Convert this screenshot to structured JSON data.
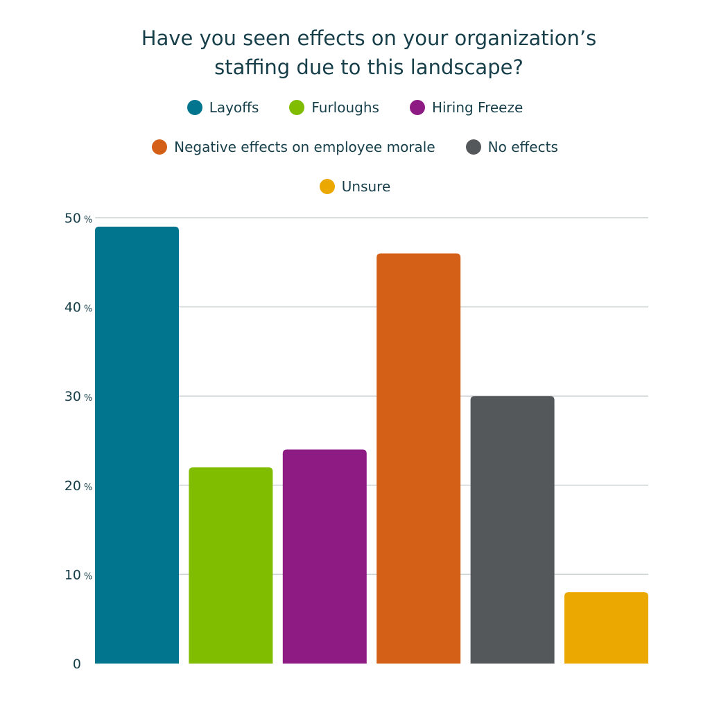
{
  "chart_data": {
    "type": "bar",
    "title": "Have you seen effects on your organization’s staffing due to this landscape?",
    "title_lines": [
      "Have you seen effects on your organization’s",
      "staffing due to this landscape?"
    ],
    "categories": [
      "Layoffs",
      "Furloughs",
      "Hiring Freeze",
      "Negative effects on employee morale",
      "No effects",
      "Unsure"
    ],
    "values": [
      49,
      22,
      24,
      46,
      30,
      8
    ],
    "colors": [
      "#00758d",
      "#80bc00",
      "#8e1b83",
      "#d45f16",
      "#54585a",
      "#eaa800"
    ],
    "ylim": [
      0,
      50
    ],
    "yticks": [
      {
        "value": 0,
        "label": "0",
        "suffix": ""
      },
      {
        "value": 10,
        "label": "10",
        "suffix": "%"
      },
      {
        "value": 20,
        "label": "20",
        "suffix": "%"
      },
      {
        "value": 30,
        "label": "30",
        "suffix": "%"
      },
      {
        "value": 40,
        "label": "40",
        "suffix": "%"
      },
      {
        "value": 50,
        "label": "50",
        "suffix": "%"
      }
    ],
    "legend_rows": [
      [
        0,
        1,
        2
      ],
      [
        3,
        4
      ],
      [
        5
      ]
    ],
    "legend_position": "top",
    "grid": true,
    "grid_color": "#ccd2d3"
  }
}
